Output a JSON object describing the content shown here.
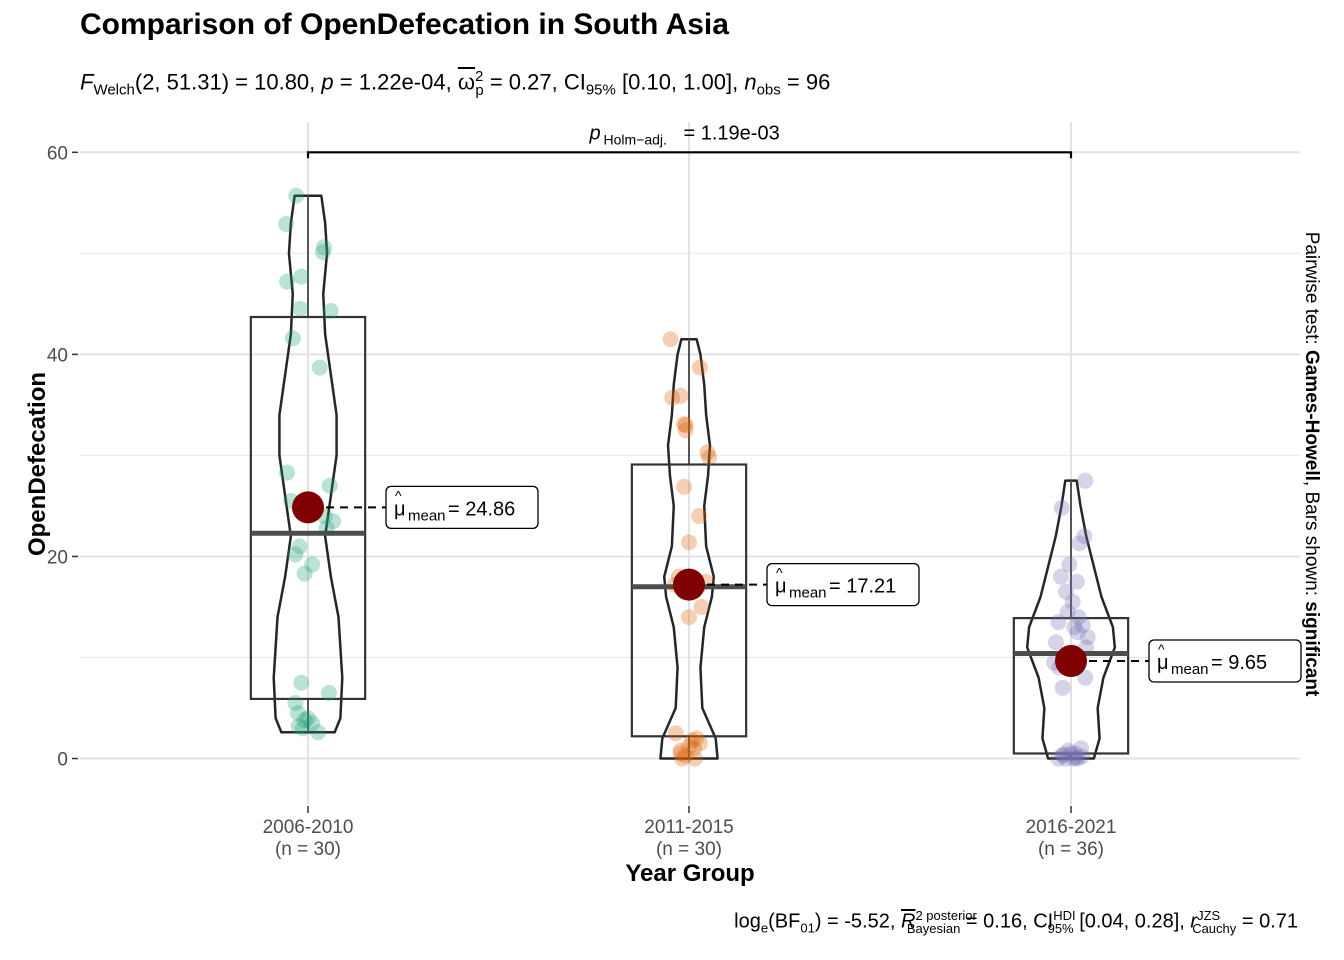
{
  "chart_data": {
    "type": "violin-box",
    "title": "Comparison of OpenDefecation in South Asia",
    "subtitle": {
      "stat_name": "F",
      "stat_sub": "Welch",
      "args": "2, 51.31",
      "stat_value": "10.80",
      "p_value": "1.22e-04",
      "effect_name": "ω",
      "effect_sup": "2",
      "effect_sub": "p",
      "effect_value": "0.27",
      "ci_label": "CI",
      "ci_sub": "95%",
      "ci": "[0.10, 1.00]",
      "n_label": "n",
      "n_sub": "obs",
      "n_value": "96"
    },
    "caption": {
      "log_label": "log",
      "log_sub": "e",
      "bf_label": "BF",
      "bf_sub": "01",
      "bf_value": "-5.52",
      "r2_label": "R",
      "r2_sup": "2 posterior",
      "r2_sub": "Bayesian",
      "r2_value": "0.16",
      "ci_label": "CI",
      "ci_sup": "HDI",
      "ci_sub": "95%",
      "ci": "[0.04, 0.28]",
      "r_label": "r",
      "r_sup": "JZS",
      "r_sub": "Cauchy",
      "r_value": "0.71"
    },
    "xlabel": "Year Group",
    "ylabel": "OpenDefecation",
    "right_label": {
      "prefix": "Pairwise test: ",
      "test": "Games-Howell",
      "middle": ", Bars shown: ",
      "shown": "significant"
    },
    "ylim": [
      -4.5,
      63
    ],
    "yticks": [
      0,
      20,
      40,
      60
    ],
    "grid": true,
    "legend": "none",
    "pairwise": {
      "from": "2006-2010",
      "to": "2016-2021",
      "label_name": "p",
      "label_sub": "Holm−adj.",
      "label_value": "1.19e-03",
      "y": 60
    },
    "mean_color": "#7f0000",
    "groups": [
      {
        "category": "2006-2010",
        "n_label": "(n = 30)",
        "color": "#1b9e77",
        "mean": 24.86,
        "mean_label": "24.86",
        "box": {
          "q1": 5.9,
          "median": 22.3,
          "q3": 43.7,
          "whisker_low": 2.6,
          "whisker_high": 55.7
        },
        "violin": [
          [
            2.6,
            0.07
          ],
          [
            4,
            0.085
          ],
          [
            8,
            0.09
          ],
          [
            14,
            0.08
          ],
          [
            18,
            0.06
          ],
          [
            22,
            0.045
          ],
          [
            26,
            0.06
          ],
          [
            30,
            0.075
          ],
          [
            34,
            0.075
          ],
          [
            38,
            0.06
          ],
          [
            42,
            0.045
          ],
          [
            46,
            0.04
          ],
          [
            50,
            0.05
          ],
          [
            53,
            0.045
          ],
          [
            55.7,
            0.035
          ]
        ],
        "points": [
          3.0,
          3.2,
          3.5,
          4.0,
          4.5,
          5.5,
          6.5,
          7.5,
          18.3,
          19.2,
          20.2,
          21.0,
          22.8,
          25.5,
          27.0,
          28.3,
          38.7,
          41.6,
          44.3,
          44.5,
          47.2,
          47.7,
          50.1,
          50.6,
          52.9,
          55.7,
          2.6,
          3.8,
          23.5,
          24.0
        ],
        "jitter": [
          -0.006,
          -0.011,
          0.005,
          0.0,
          -0.012,
          -0.015,
          0.025,
          -0.008,
          -0.004,
          0.005,
          -0.015,
          -0.01,
          0.022,
          -0.02,
          0.026,
          -0.025,
          0.014,
          -0.018,
          0.027,
          -0.009,
          -0.025,
          -0.008,
          0.018,
          0.019,
          -0.026,
          -0.014,
          0.012,
          -0.004,
          0.03,
          0.02
        ]
      },
      {
        "category": "2011-2015",
        "n_label": "(n = 30)",
        "color": "#d95f02",
        "mean": 17.21,
        "mean_label": "17.21",
        "box": {
          "q1": 2.2,
          "median": 17.0,
          "q3": 29.1,
          "whisker_low": 0.0,
          "whisker_high": 41.5
        },
        "violin": [
          [
            0,
            0.075
          ],
          [
            2,
            0.07
          ],
          [
            5,
            0.035
          ],
          [
            9,
            0.03
          ],
          [
            13,
            0.04
          ],
          [
            16,
            0.06
          ],
          [
            18,
            0.065
          ],
          [
            21,
            0.045
          ],
          [
            25,
            0.04
          ],
          [
            28,
            0.05
          ],
          [
            31,
            0.055
          ],
          [
            34,
            0.045
          ],
          [
            37,
            0.04
          ],
          [
            40,
            0.03
          ],
          [
            41.5,
            0.02
          ]
        ],
        "points": [
          0.0,
          0.0,
          0.3,
          0.8,
          1.2,
          1.5,
          1.8,
          2.0,
          2.5,
          14.0,
          15.0,
          16.5,
          17.2,
          17.5,
          21.4,
          24.0,
          26.9,
          29.8,
          30.3,
          33.0,
          33.1,
          35.7,
          35.9,
          38.7,
          41.5,
          0.5,
          1.0,
          17.0,
          18.0,
          32.5
        ],
        "jitter": [
          -0.008,
          0.007,
          -0.004,
          -0.01,
          0.0,
          0.013,
          0.004,
          0.009,
          -0.016,
          0.0,
          0.015,
          -0.005,
          -0.017,
          0.02,
          0.0,
          0.012,
          -0.006,
          0.024,
          0.022,
          -0.004,
          -0.006,
          -0.02,
          -0.01,
          0.013,
          -0.022,
          -0.01,
          0.006,
          0.011,
          -0.012,
          -0.004
        ]
      },
      {
        "category": "2016-2021",
        "n_label": "(n = 36)",
        "color": "#7570b3",
        "mean": 9.65,
        "mean_label": "9.65",
        "box": {
          "q1": 0.5,
          "median": 10.4,
          "q3": 13.9,
          "whisker_low": 0.0,
          "whisker_high": 27.5
        },
        "violin": [
          [
            0,
            0.06
          ],
          [
            2,
            0.075
          ],
          [
            5,
            0.07
          ],
          [
            8,
            0.085
          ],
          [
            11,
            0.115
          ],
          [
            13,
            0.11
          ],
          [
            16,
            0.08
          ],
          [
            19,
            0.06
          ],
          [
            22,
            0.04
          ],
          [
            25,
            0.025
          ],
          [
            27.5,
            0.015
          ]
        ],
        "points": [
          0.0,
          0.0,
          0.0,
          0.0,
          0.2,
          0.3,
          0.5,
          0.5,
          0.8,
          1.0,
          7.0,
          8.0,
          9.0,
          10.0,
          11.5,
          12.5,
          13.0,
          13.5,
          14.0,
          14.5,
          15.5,
          16.5,
          17.5,
          18.0,
          19.2,
          21.3,
          22.0,
          24.8,
          27.5,
          10.5,
          12.0,
          9.5,
          11.0,
          0.4,
          0.1,
          13.2
        ],
        "jitter": [
          -0.015,
          -0.006,
          0.003,
          0.008,
          0.013,
          -0.01,
          0.005,
          0.0,
          -0.003,
          0.012,
          -0.01,
          0.017,
          -0.014,
          -0.008,
          -0.018,
          0.008,
          0.004,
          -0.015,
          0.009,
          -0.004,
          0.002,
          -0.006,
          0.007,
          -0.012,
          -0.002,
          0.01,
          0.016,
          -0.011,
          0.017,
          0.003,
          0.02,
          -0.02,
          0.018,
          -0.009,
          0.006,
          0.014
        ]
      }
    ]
  }
}
